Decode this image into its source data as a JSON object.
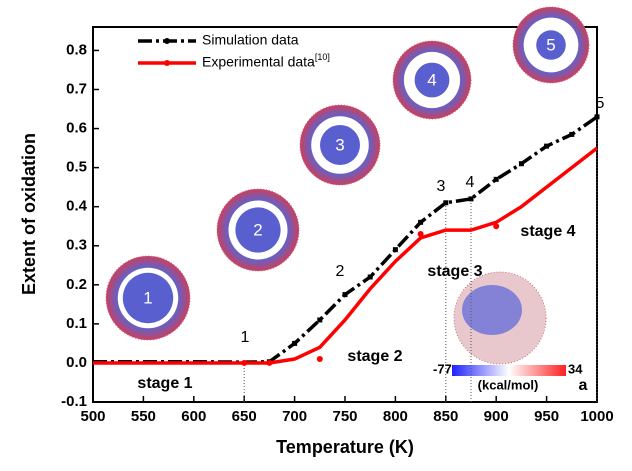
{
  "chart_data": {
    "type": "line",
    "x_label": "Temperature (K)",
    "y_label": "Extent of oxidation",
    "xlim": [
      500,
      1000
    ],
    "ylim": [
      -0.1,
      0.86
    ],
    "xticks": [
      500,
      550,
      600,
      650,
      700,
      750,
      800,
      850,
      900,
      950,
      1000
    ],
    "yticks": [
      -0.1,
      {
        "value": 0,
        "label": "0.0"
      },
      0.1,
      0.2,
      0.3,
      0.4,
      0.5,
      0.6,
      0.7,
      0.8
    ],
    "series": [
      {
        "name": "Simulation data",
        "color": "#000000",
        "x": [
          500,
          550,
          600,
          650,
          675,
          700,
          725,
          750,
          775,
          800,
          825,
          850,
          875,
          900,
          925,
          950,
          975,
          1000
        ],
        "values": [
          0.003,
          0.003,
          0.003,
          0.002,
          0.003,
          0.05,
          0.11,
          0.175,
          0.22,
          0.29,
          0.36,
          0.41,
          0.42,
          0.47,
          0.51,
          0.555,
          0.585,
          0.63
        ]
      },
      {
        "name": "Experimental data",
        "name_sup": "[10]",
        "color": "#ff0000",
        "x": [
          500,
          600,
          650,
          675,
          700,
          725,
          750,
          775,
          800,
          825,
          850,
          875,
          900,
          925,
          950,
          975,
          1000
        ],
        "values": [
          0.0,
          0.0,
          0.0,
          0.0,
          0.01,
          0.04,
          0.11,
          0.19,
          0.26,
          0.32,
          0.34,
          0.34,
          0.36,
          0.4,
          0.45,
          0.5,
          0.55
        ],
        "marker_x": [
          650,
          675,
          725,
          825,
          900
        ],
        "marker_values": [
          0.0,
          0.0,
          0.01,
          0.33,
          0.35
        ]
      }
    ],
    "vlines": [
      650,
      850,
      875,
      1000
    ],
    "annotations": [
      "1",
      "2",
      "3",
      "4",
      "5",
      "stage 1",
      "stage 2",
      "stage 3",
      "stage 4",
      "a"
    ],
    "particle_labels": [
      "1",
      "2",
      "3",
      "4",
      "5"
    ],
    "colorbar": {
      "min_label": "-77",
      "max_label": "34",
      "unit": "(kcal/mol)"
    }
  }
}
